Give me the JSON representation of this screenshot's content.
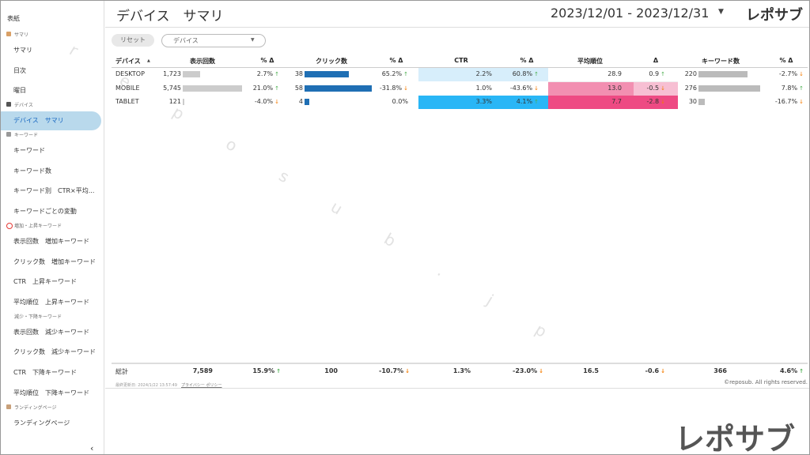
{
  "header": {
    "title": "デバイス　サマリ",
    "date_range": "2023/12/01 - 2023/12/31",
    "logo": "レポサブ"
  },
  "sidebar": {
    "cover": "表紙",
    "sections": [
      {
        "title": "サマリ",
        "items": [
          "サマリ",
          "日次",
          "曜日"
        ]
      },
      {
        "title": "デバイス",
        "items": [
          "デバイス　サマリ"
        ]
      },
      {
        "title": "キーワード",
        "items": [
          "キーワード",
          "キーワード数",
          "キーワード別　CTR×平均...",
          "キーワードごとの変動"
        ]
      },
      {
        "title": "増加・上昇キーワード",
        "items": [
          "表示回数　増加キーワード",
          "クリック数　増加キーワード",
          "CTR　上昇キーワード",
          "平均順位　上昇キーワード"
        ]
      },
      {
        "title": "減少・下降キーワード",
        "items": [
          "表示回数　減少キーワード",
          "クリック数　減少キーワード",
          "CTR　下降キーワード",
          "平均順位　下降キーワード"
        ]
      },
      {
        "title": "ランディングページ",
        "items": [
          "ランディングページ"
        ]
      }
    ]
  },
  "filters": {
    "reset": "リセット",
    "dropdown": "デバイス"
  },
  "table": {
    "headers": [
      "デバイス",
      "表示回数",
      "% Δ",
      "クリック数",
      "% Δ",
      "CTR",
      "% Δ",
      "平均順位",
      "Δ",
      "キーワード数",
      "% Δ"
    ],
    "rows": [
      [
        "DESKTOP",
        {
          "value": 1723,
          "label": "1,723"
        },
        {
          "text": "2.7%",
          "arrow": "↑"
        },
        38,
        {
          "text": "65.2%",
          "arrow": "↑"
        },
        "2.2%",
        {
          "text": "60.8%",
          "arrow": "↑"
        },
        "28.9",
        {
          "text": "0.9",
          "arrow": "↑"
        },
        220,
        {
          "text": "-2.7%",
          "arrow": "↓"
        }
      ],
      [
        "MOBILE",
        {
          "value": 5745,
          "label": "5,745"
        },
        {
          "text": "21.0%",
          "arrow": "↑"
        },
        58,
        {
          "text": "-31.8%",
          "arrow": "↓"
        },
        "1.0%",
        {
          "text": "-43.6%",
          "arrow": "↓"
        },
        "13.0",
        {
          "text": "-0.5",
          "arrow": "↓"
        },
        276,
        {
          "text": "7.8%",
          "arrow": "↑"
        }
      ],
      [
        "TABLET",
        121,
        {
          "text": "-4.0%",
          "arrow": "↓"
        },
        4,
        "0.0%",
        "3.3%",
        {
          "text": "4.1%",
          "arrow": "↑"
        },
        "7.7",
        {
          "text": "-2.8",
          "arrow": "↓"
        },
        30,
        {
          "text": "-16.7%",
          "arrow": "↓"
        }
      ]
    ],
    "total": [
      "総計",
      "7,589",
      {
        "text": "15.9%",
        "arrow": "↑"
      },
      "100",
      {
        "text": "-10.7%",
        "arrow": "↓"
      },
      "1.3%",
      {
        "text": "-23.0%",
        "arrow": "↓"
      },
      "16.5",
      {
        "text": "-0.6",
        "arrow": "↓"
      },
      "366",
      {
        "text": "4.6%",
        "arrow": "↑"
      }
    ]
  },
  "footer": {
    "last_updated": "最終更新日: 2024/1/22 13:57:49",
    "privacy": "プライバシー ポリシー",
    "copyright": "©reposub. All rights reserved."
  },
  "watermark": "reposub.jp",
  "logo_large": "レポサブ"
}
